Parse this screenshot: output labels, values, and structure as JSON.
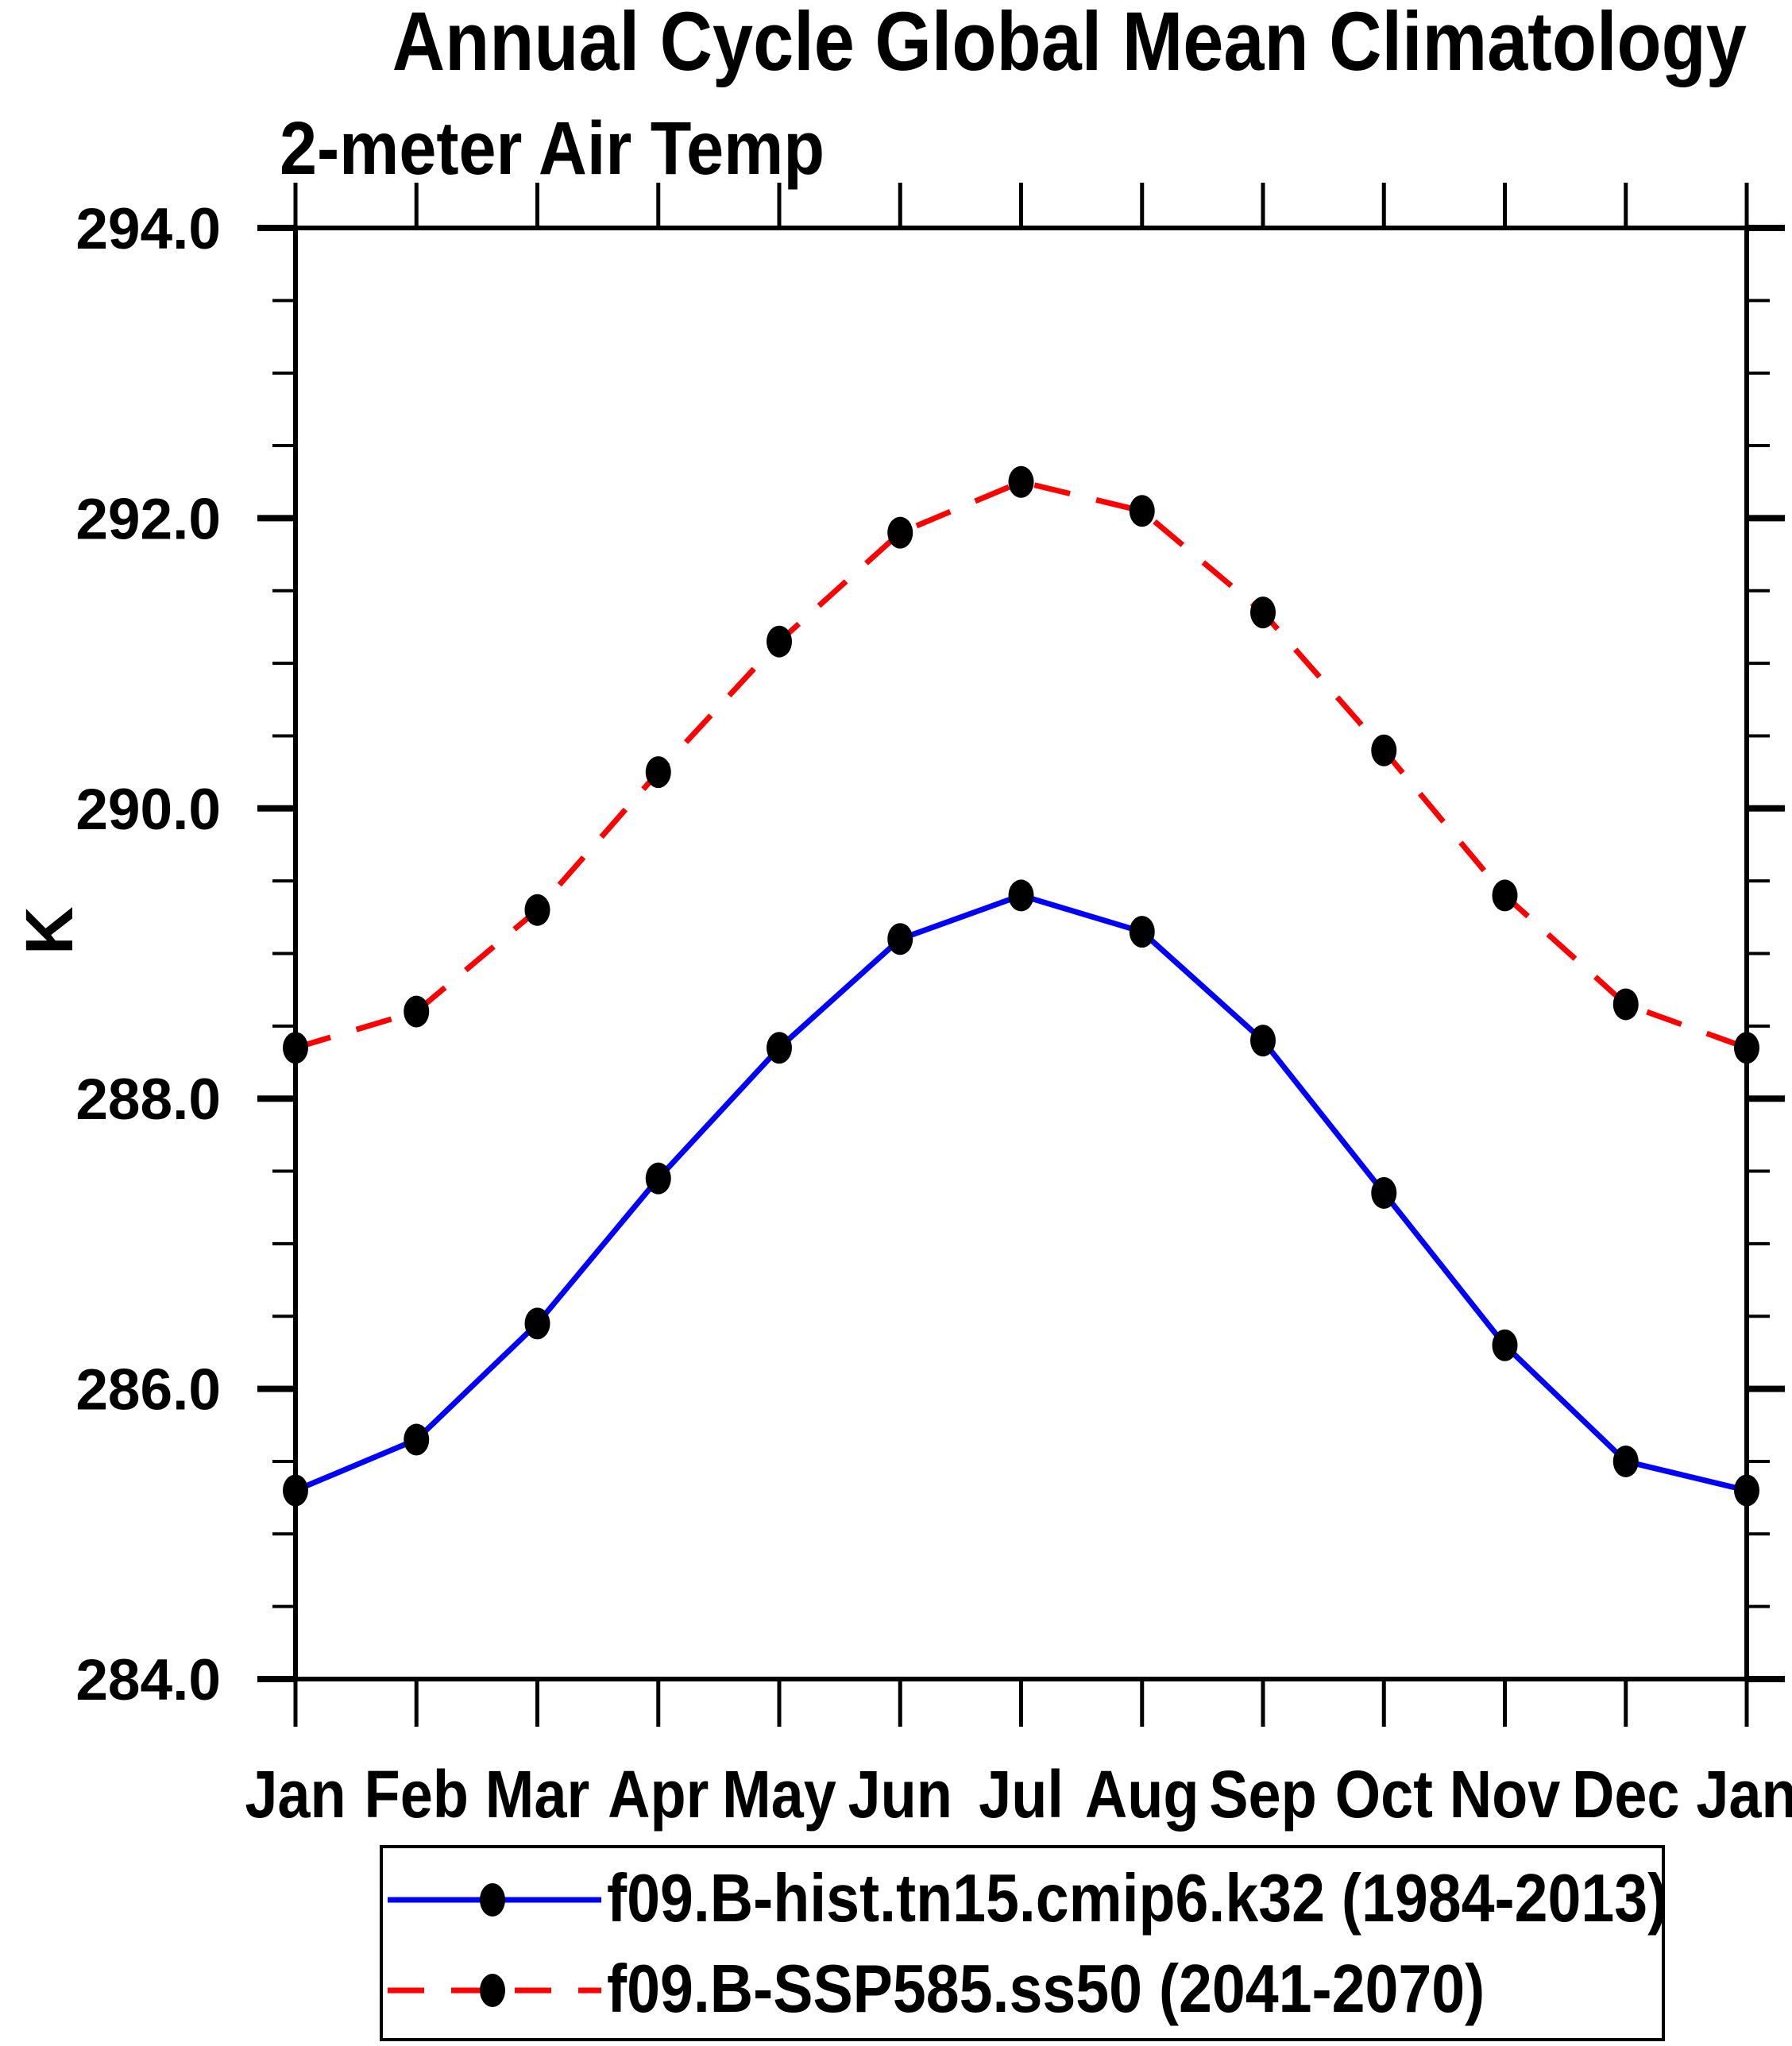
{
  "chart_data": {
    "type": "line",
    "title": "Annual Cycle Global Mean Climatology",
    "subtitle": "2-meter Air Temp",
    "ylabel": "K",
    "x_categories": [
      "Jan",
      "Feb",
      "Mar",
      "Apr",
      "May",
      "Jun",
      "Jul",
      "Aug",
      "Sep",
      "Oct",
      "Nov",
      "Dec",
      "Jan"
    ],
    "ylim": [
      284.0,
      294.0
    ],
    "ytick_major_labels": [
      "294.0",
      "292.0",
      "290.0",
      "288.0",
      "286.0",
      "284.0"
    ],
    "ytick_major_values": [
      294.0,
      292.0,
      290.0,
      288.0,
      286.0,
      284.0
    ],
    "ytick_minor_step": 0.5,
    "grid": false,
    "legend_position": "bottom",
    "series": [
      {
        "name": "f09.B-hist.tn15.cmip6.k32 (1984-2013)",
        "line_color": "#0000ff",
        "line_style": "solid",
        "marker": "filled-circle",
        "marker_color": "#000000",
        "values": [
          285.3,
          285.65,
          286.45,
          287.45,
          288.35,
          289.1,
          289.4,
          289.15,
          288.4,
          287.35,
          286.3,
          285.5,
          285.3
        ]
      },
      {
        "name": "f09.B-SSP585.ss50 (2041-2070)",
        "line_color": "#ff0000",
        "line_style": "dashed",
        "marker": "filled-circle",
        "marker_color": "#000000",
        "values": [
          288.35,
          288.6,
          289.3,
          290.25,
          291.15,
          291.9,
          292.25,
          292.05,
          291.35,
          290.4,
          289.4,
          288.65,
          288.35
        ]
      }
    ]
  },
  "colors": {
    "axis": "#000000",
    "background": "#ffffff",
    "hist_line": "#0000ff",
    "ssp585_line": "#ff0000",
    "marker": "#000000"
  }
}
